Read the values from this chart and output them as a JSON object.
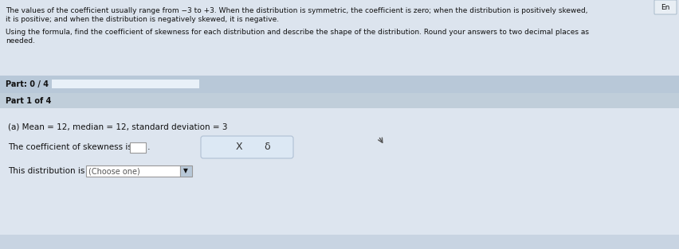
{
  "overall_bg": "#c8d4e2",
  "top_section_bg": "#dce4ee",
  "part_bar_bg": "#b8c8d8",
  "progress_bar_fill": "#e8f0f8",
  "part1_bar_bg": "#c0ceda",
  "content_bg": "#dde5ef",
  "bottom_bg": "#c8d4e2",
  "input_box_bg": "#ffffff",
  "input_box_border": "#999999",
  "btn_container_bg": "#dce8f4",
  "btn_container_border": "#b0c0d4",
  "dropdown_bg": "#ffffff",
  "dropdown_border": "#999999",
  "dropdown_arrow_bg": "#b8c8d8",
  "corner_btn_bg": "#e8eef4",
  "corner_btn_border": "#aabbcc",
  "text_dark": "#111111",
  "text_medium": "#333333",
  "text_light": "#555555",
  "top_text_line1": "The values of the coefficient usually range from −3 to +3. When the distribution is symmetric, the coefficient is zero; when the distribution is positively skewed,",
  "top_text_line2": "it is positive; and when the distribution is negatively skewed, it is negative.",
  "instruction_line1": "Using the formula, find the coefficient of skewness for each distribution and describe the shape of the distribution. Round your answers to two decimal places as",
  "instruction_line2": "needed.",
  "part_progress": "Part: 0 / 4",
  "part_label": "Part 1 of 4",
  "part_a_text": "(a) Mean = 12, median = 12, standard deviation = 3",
  "coeff_label": "The coefficient of skewness is",
  "distribution_label": "This distribution is",
  "dropdown_text": "(Choose one)",
  "corner_label": "En",
  "button_x_label": "X",
  "button_redo_label": "δ"
}
